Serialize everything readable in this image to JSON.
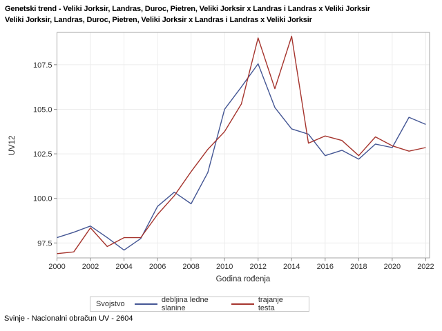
{
  "title": {
    "line1": "Genetski trend - Veliki Jorksir, Landras, Duroc, Pietren, Veliki Jorksir x Landras i Landras x Veliki Jorksir",
    "line2": "Veliki Jorksir, Landras, Duroc, Pietren, Veliki Jorksir x Landras i Landras x Veliki Jorksir"
  },
  "footer": "Svinje - Nacionalni obračun UV - 2604",
  "legend": {
    "title": "Svojstvo"
  },
  "chart_data": {
    "type": "line",
    "xlabel": "Godina rođenja",
    "ylabel": "UV12",
    "x": [
      2000,
      2001,
      2002,
      2003,
      2004,
      2005,
      2006,
      2007,
      2008,
      2009,
      2010,
      2011,
      2012,
      2013,
      2014,
      2015,
      2016,
      2017,
      2018,
      2019,
      2020,
      2021,
      2022
    ],
    "series": [
      {
        "name": "debljina leđne slanine",
        "color": "#445694",
        "values": [
          97.8,
          98.1,
          98.45,
          97.8,
          97.1,
          97.75,
          99.55,
          100.35,
          99.7,
          101.45,
          105.0,
          106.25,
          107.55,
          105.1,
          103.9,
          103.6,
          102.4,
          102.7,
          102.2,
          103.05,
          102.85,
          104.55,
          104.15
        ]
      },
      {
        "name": "trajanje testa",
        "color": "#A5342D",
        "values": [
          96.9,
          97.0,
          98.35,
          97.3,
          97.8,
          97.8,
          99.1,
          100.15,
          101.5,
          102.75,
          103.75,
          105.3,
          109.0,
          106.15,
          109.1,
          103.1,
          103.5,
          103.25,
          102.4,
          103.45,
          102.95,
          102.65,
          102.85
        ]
      }
    ],
    "xticks": [
      2000,
      2002,
      2004,
      2006,
      2008,
      2010,
      2012,
      2014,
      2016,
      2018,
      2020,
      2022
    ],
    "yticks": [
      97.5,
      100.0,
      102.5,
      105.0,
      107.5
    ],
    "ylim": [
      96.66,
      109.31
    ],
    "xlim": [
      2000,
      2022.23
    ],
    "grid": true,
    "legend_position": "bottom"
  }
}
